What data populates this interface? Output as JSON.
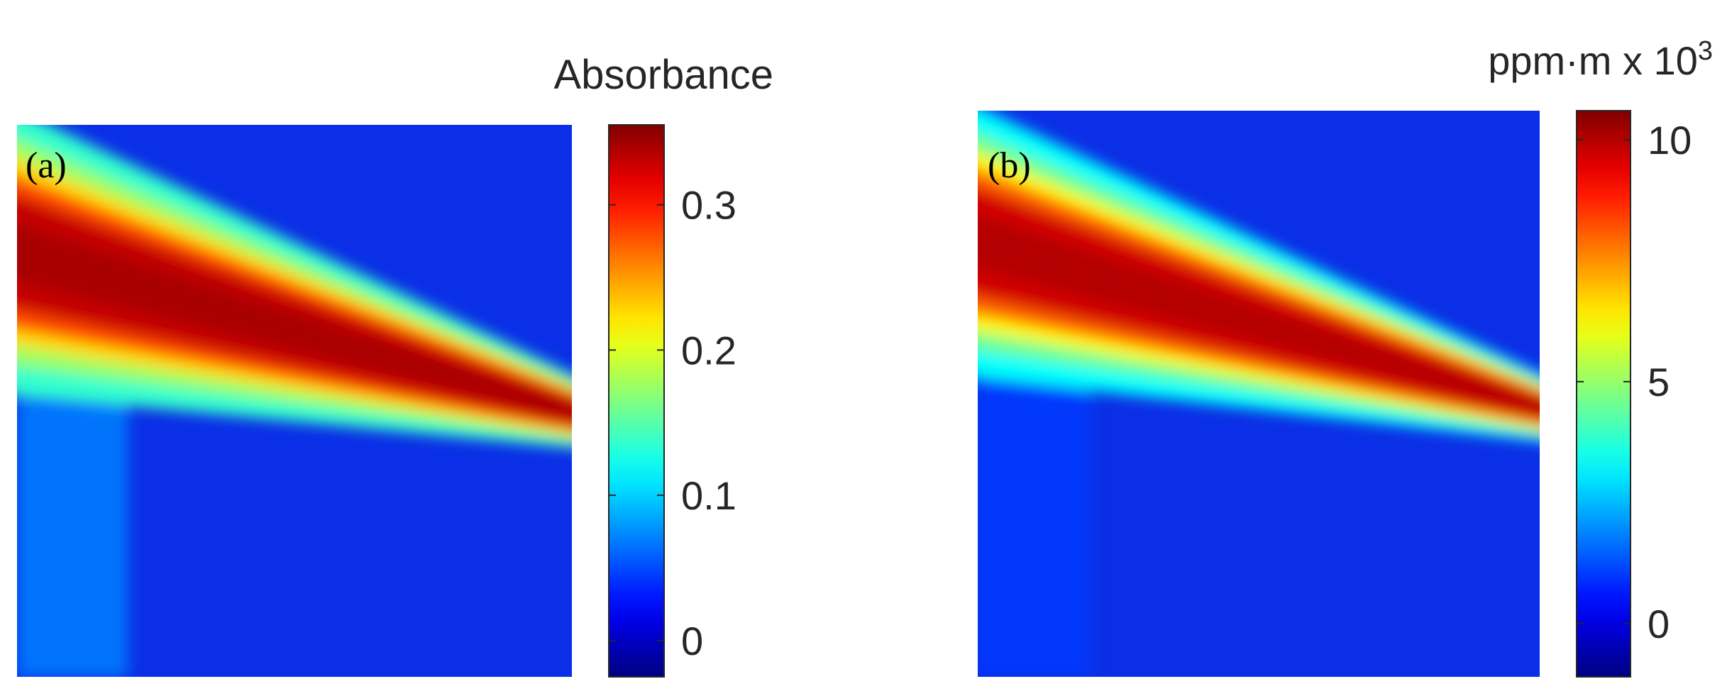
{
  "chart_data": [
    {
      "type": "heatmap",
      "panel_label": "(a)",
      "colorbar": {
        "title": "Absorbance",
        "ticks": [
          "0",
          "0.1",
          "0.2",
          "0.3"
        ],
        "tick_values": [
          0,
          0.1,
          0.2,
          0.3
        ],
        "range": [
          -0.025,
          0.355
        ],
        "colormap": "jet"
      },
      "plume": {
        "source_side": "left",
        "peak_value": 0.34,
        "background_value": 0.04,
        "left_background_value": 0.07,
        "description": "tapering plume from left edge narrowing to right edge"
      }
    },
    {
      "type": "heatmap",
      "panel_label": "(b)",
      "colorbar": {
        "title_main": "ppm·m x 10",
        "title_exponent": "3",
        "ticks": [
          "0",
          "5",
          "10"
        ],
        "tick_values": [
          0,
          5,
          10
        ],
        "range": [
          -1.1,
          10.6
        ],
        "colormap": "jet"
      },
      "plume": {
        "source_side": "left",
        "peak_value": 10.0,
        "background_value": 0.2,
        "left_background_value": 1.0,
        "description": "tapering plume from left edge narrowing to right edge"
      }
    }
  ],
  "colors": {
    "jet_low": "#00008f",
    "jet_high": "#800000",
    "text": "#262626"
  }
}
